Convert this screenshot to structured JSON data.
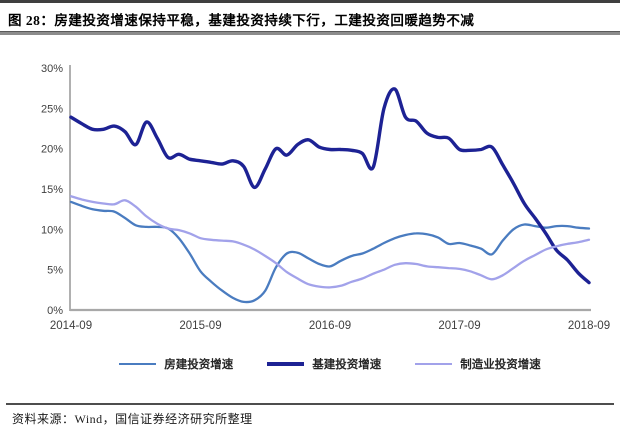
{
  "figure": {
    "title": "图 28：房建投资增速保持平稳，基建投资持续下行，工建投资回暖趋势不减",
    "source": "资料来源：Wind，国信证券经济研究所整理"
  },
  "chart_data": {
    "type": "line",
    "title": "房建投资增速保持平稳，基建投资持续下行，工建投资回暖趋势不减",
    "x_interval": "monthly",
    "x_start": "2014-09",
    "x_end": "2018-09",
    "x_tick_labels": [
      "2014-09",
      "2015-09",
      "2016-09",
      "2017-09",
      "2018-09"
    ],
    "x_tick_months": [
      0,
      12,
      24,
      36,
      48
    ],
    "y_tick_labels": [
      "0%",
      "5%",
      "10%",
      "15%",
      "20%",
      "25%",
      "30%"
    ],
    "y_tick_values": [
      0,
      5,
      10,
      15,
      20,
      25,
      30
    ],
    "ylim": [
      0,
      30
    ],
    "grid": false,
    "legend_position": "bottom",
    "axis_color": "#a8a8a8",
    "tick_text_color": "#3f3f3f",
    "series": [
      {
        "name": "房建投资增速",
        "color": "#4a7cc0",
        "stroke_width": 2.3,
        "values": [
          13.4,
          12.9,
          12.5,
          12.3,
          12.2,
          11.4,
          10.5,
          10.3,
          10.3,
          10.1,
          8.9,
          7.0,
          4.8,
          3.5,
          2.4,
          1.5,
          1.0,
          1.2,
          2.4,
          5.3,
          7.0,
          7.1,
          6.4,
          5.7,
          5.4,
          6.1,
          6.7,
          7.0,
          7.6,
          8.3,
          8.9,
          9.3,
          9.5,
          9.4,
          9.0,
          8.2,
          8.3,
          8.0,
          7.6,
          6.9,
          8.6,
          10.0,
          10.6,
          10.4,
          10.2,
          10.4,
          10.4,
          10.2,
          10.1
        ]
      },
      {
        "name": "基建投资增速",
        "color": "#1d2294",
        "stroke_width": 3.4,
        "values": [
          23.9,
          23.1,
          22.4,
          22.4,
          22.8,
          22.1,
          20.5,
          23.3,
          21.3,
          18.9,
          19.3,
          18.7,
          18.5,
          18.3,
          18.1,
          18.5,
          17.8,
          15.2,
          17.5,
          20.0,
          19.2,
          20.5,
          21.1,
          20.2,
          19.9,
          19.9,
          19.8,
          19.4,
          17.7,
          25.0,
          27.4,
          23.9,
          23.4,
          21.9,
          21.4,
          21.3,
          19.9,
          19.8,
          19.9,
          20.2,
          18.0,
          15.7,
          13.2,
          11.4,
          9.5,
          7.4,
          6.2,
          4.6,
          3.4
        ]
      },
      {
        "name": "制造业投资增速",
        "color": "#a2a2ea",
        "stroke_width": 2.3,
        "values": [
          14.1,
          13.7,
          13.4,
          13.2,
          13.1,
          13.6,
          12.8,
          11.6,
          10.7,
          10.1,
          9.9,
          9.5,
          8.9,
          8.7,
          8.6,
          8.5,
          8.1,
          7.5,
          6.7,
          5.8,
          4.7,
          3.9,
          3.2,
          2.9,
          2.8,
          3.0,
          3.5,
          3.9,
          4.5,
          5.0,
          5.6,
          5.8,
          5.7,
          5.4,
          5.3,
          5.2,
          5.1,
          4.8,
          4.3,
          3.8,
          4.3,
          5.2,
          6.1,
          6.8,
          7.5,
          7.9,
          8.2,
          8.4,
          8.7
        ]
      }
    ]
  }
}
